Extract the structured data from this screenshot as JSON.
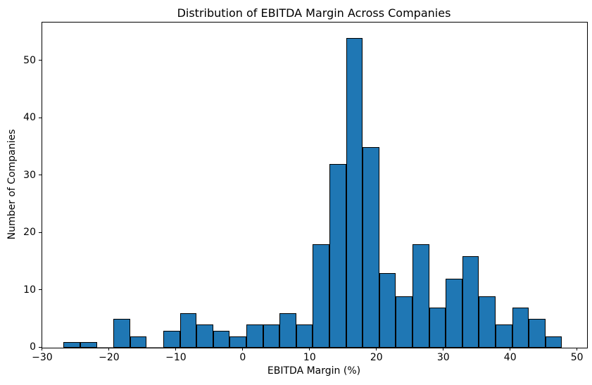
{
  "chart_data": {
    "type": "bar",
    "subtype": "histogram",
    "title": "Distribution of EBITDA Margin Across Companies",
    "xlabel": "EBITDA Margin (%)",
    "ylabel": "Number of Companies",
    "bin_start": -26.9,
    "bin_width": 2.485,
    "counts": [
      1,
      1,
      0,
      5,
      2,
      0,
      3,
      6,
      4,
      3,
      2,
      4,
      4,
      6,
      4,
      18,
      32,
      54,
      35,
      13,
      9,
      18,
      7,
      12,
      16,
      9,
      4,
      7,
      5,
      2
    ],
    "total_companies": 286,
    "xlim": [
      -30.1,
      51.4
    ],
    "ylim": [
      0,
      56.7
    ],
    "xticks": [
      -30,
      -20,
      -10,
      0,
      10,
      20,
      30,
      40,
      50
    ],
    "xtick_labels": [
      "−30",
      "−20",
      "−10",
      "0",
      "10",
      "20",
      "30",
      "40",
      "50"
    ],
    "yticks": [
      0,
      10,
      20,
      30,
      40,
      50
    ],
    "ytick_labels": [
      "0",
      "10",
      "20",
      "30",
      "40",
      "50"
    ],
    "bar_color": "#1f77b4",
    "bar_edge_color": "#000000",
    "axis_color": "#000000",
    "background_color": "#ffffff",
    "grid": false,
    "legend": null
  }
}
